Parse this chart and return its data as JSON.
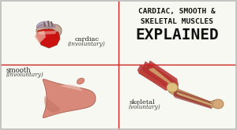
{
  "bg_color": "#f5f5f0",
  "panel_bg": "#f8f8f3",
  "border_color": "#bbbbbb",
  "divider_color": "#cc2222",
  "top_left_label": "cardiac",
  "top_left_sublabel": "(involuntary)",
  "bottom_left_label": "smooth",
  "bottom_left_sublabel": "(involuntary)",
  "bottom_right_label": "skeletal",
  "bottom_right_sublabel": "(voluntary)",
  "title_line1": "CARDIAC, SMOOTH &",
  "title_line2": "SKELETAL MUSCLES",
  "title_line3": "EXPLAINED",
  "title_color": "#111111",
  "label_color": "#222222",
  "sublabel_color": "#444444",
  "heart_outer": "#c8a898",
  "heart_pink": "#d4887a",
  "heart_red": "#cc1111",
  "heart_dark": "#993322",
  "heart_purple": "#9988aa",
  "heart_brown": "#7a5540",
  "stomach_main": "#d9897a",
  "stomach_light": "#e8b0a0",
  "stomach_highlight": "#f0c8bc",
  "muscle_red1": "#b83030",
  "muscle_red2": "#993333",
  "muscle_tan": "#c8a060",
  "muscle_bone": "#ddc080",
  "muscle_skin": "#d4a878",
  "muscle_dark": "#7a1818"
}
